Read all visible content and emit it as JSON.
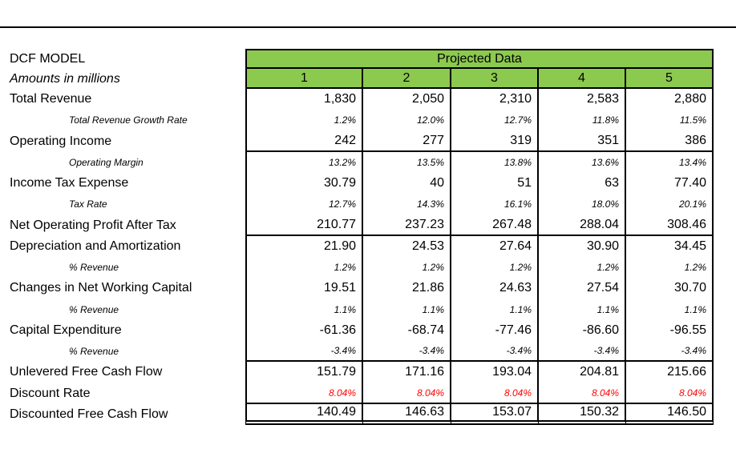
{
  "header": {
    "title": "DCF MODEL",
    "subtitle": "Amounts in millions",
    "projected_label": "Projected Data",
    "years": [
      "1",
      "2",
      "3",
      "4",
      "5"
    ]
  },
  "colors": {
    "header_green": "#8CC94F",
    "discount_rate_red": "#FF0000",
    "border_black": "#000000"
  },
  "rows": [
    {
      "label": "Total Revenue",
      "type": "main",
      "values": [
        "1,830",
        "2,050",
        "2,310",
        "2,583",
        "2,880"
      ]
    },
    {
      "label": "Total Revenue Growth Rate",
      "type": "sub",
      "values": [
        "1.2%",
        "12.0%",
        "12.7%",
        "11.8%",
        "11.5%"
      ]
    },
    {
      "label": "Operating Income",
      "type": "main",
      "section_end": true,
      "values": [
        "242",
        "277",
        "319",
        "351",
        "386"
      ]
    },
    {
      "label": "Operating Margin",
      "type": "sub",
      "values": [
        "13.2%",
        "13.5%",
        "13.8%",
        "13.6%",
        "13.4%"
      ]
    },
    {
      "label": "Income Tax Expense",
      "type": "main",
      "values": [
        "30.79",
        "40",
        "51",
        "63",
        "77.40"
      ]
    },
    {
      "label": "Tax Rate",
      "type": "sub",
      "values": [
        "12.7%",
        "14.3%",
        "16.1%",
        "18.0%",
        "20.1%"
      ]
    },
    {
      "label": "Net Operating Profit After Tax",
      "type": "main",
      "section_end": true,
      "values": [
        "210.77",
        "237.23",
        "267.48",
        "288.04",
        "308.46"
      ]
    },
    {
      "label": "Depreciation and Amortization",
      "type": "main",
      "values": [
        "21.90",
        "24.53",
        "27.64",
        "30.90",
        "34.45"
      ]
    },
    {
      "label": "% Revenue",
      "type": "sub",
      "values": [
        "1.2%",
        "1.2%",
        "1.2%",
        "1.2%",
        "1.2%"
      ]
    },
    {
      "label": "Changes in Net Working Capital",
      "type": "main",
      "values": [
        "19.51",
        "21.86",
        "24.63",
        "27.54",
        "30.70"
      ]
    },
    {
      "label": "% Revenue",
      "type": "sub",
      "values": [
        "1.1%",
        "1.1%",
        "1.1%",
        "1.1%",
        "1.1%"
      ]
    },
    {
      "label": "Capital Expenditure",
      "type": "main",
      "values": [
        "-61.36",
        "-68.74",
        "-77.46",
        "-86.60",
        "-96.55"
      ]
    },
    {
      "label": "% Revenue",
      "type": "sub",
      "section_end": true,
      "values": [
        "-3.4%",
        "-3.4%",
        "-3.4%",
        "-3.4%",
        "-3.4%"
      ]
    },
    {
      "label": "Unlevered Free Cash Flow",
      "type": "main",
      "values": [
        "151.79",
        "171.16",
        "193.04",
        "204.81",
        "215.66"
      ]
    },
    {
      "label": "Discount Rate",
      "type": "main",
      "value_style": "red",
      "section_end": true,
      "values": [
        "8.04%",
        "8.04%",
        "8.04%",
        "8.04%",
        "8.04%"
      ]
    },
    {
      "label": "Discounted Free Cash Flow",
      "type": "main",
      "section_end": "double",
      "values": [
        "140.49",
        "146.63",
        "153.07",
        "150.32",
        "146.50"
      ]
    }
  ]
}
